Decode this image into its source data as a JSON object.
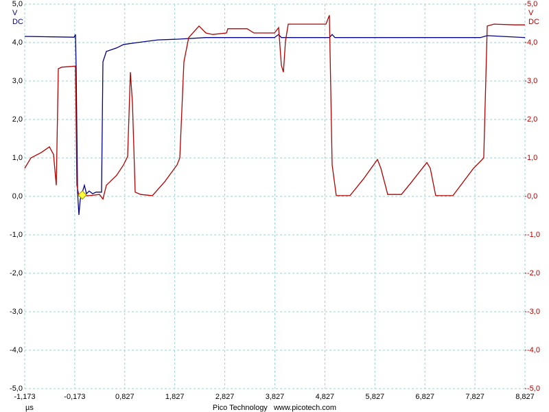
{
  "chart_data": {
    "type": "line",
    "x_label": "µs",
    "y_unit": "V",
    "y_coupling": "DC",
    "footer": "Pico Technology   www.picotech.com",
    "xlim": [
      -1.173,
      8.827
    ],
    "xticks": [
      {
        "value": -1.173,
        "label": "-1,173"
      },
      {
        "value": -0.173,
        "label": "-0,173"
      },
      {
        "value": 0.827,
        "label": "0,827"
      },
      {
        "value": 1.827,
        "label": "1,827"
      },
      {
        "value": 2.827,
        "label": "2,827"
      },
      {
        "value": 3.827,
        "label": "3,827"
      },
      {
        "value": 4.827,
        "label": "4,827"
      },
      {
        "value": 5.827,
        "label": "5,827"
      },
      {
        "value": 6.827,
        "label": "6,827"
      },
      {
        "value": 7.827,
        "label": "7,827"
      },
      {
        "value": 8.827,
        "label": "8,827"
      }
    ],
    "ylim": [
      -5,
      5
    ],
    "yticks": [
      {
        "value": 5,
        "label": "5,0"
      },
      {
        "value": 4,
        "label": "4,0"
      },
      {
        "value": 3,
        "label": "3,0"
      },
      {
        "value": 2,
        "label": "2,0"
      },
      {
        "value": 1,
        "label": "1,0"
      },
      {
        "value": 0,
        "label": "0,0"
      },
      {
        "value": -1,
        "label": "-1,0"
      },
      {
        "value": -2,
        "label": "-2,0"
      },
      {
        "value": -3,
        "label": "-3,0"
      },
      {
        "value": -4,
        "label": "-4,0"
      },
      {
        "value": -5,
        "label": "-5,0"
      }
    ],
    "y2lim": [
      -5,
      5
    ],
    "y2ticks": [
      {
        "value": 5,
        "label": "5,0"
      },
      {
        "value": 4,
        "label": "4,0"
      },
      {
        "value": 3,
        "label": "3,0"
      },
      {
        "value": 2,
        "label": "2,0"
      },
      {
        "value": 1,
        "label": "1,0"
      },
      {
        "value": 0,
        "label": "0,0"
      },
      {
        "value": -1,
        "label": "-1,0"
      },
      {
        "value": -2,
        "label": "-2,0"
      },
      {
        "value": -3,
        "label": "-3,0"
      },
      {
        "value": -4,
        "label": "-4,0"
      },
      {
        "value": -5,
        "label": "-5,0"
      }
    ],
    "grid": true,
    "y_color": "#000080",
    "y2_color": "#b00000",
    "series": [
      {
        "color": "#000080",
        "x": [
          -1.173,
          -0.185,
          -0.158,
          -0.144,
          -0.117,
          -0.089,
          -0.062,
          -0.021,
          0.02,
          0.062,
          0.116,
          0.185,
          0.254,
          0.363,
          0.391,
          0.459,
          0.665,
          0.802,
          1.077,
          1.488,
          1.9,
          2.448,
          2.86,
          3.82,
          3.902,
          3.957,
          4.917,
          4.972,
          5.027,
          7.935,
          8.072,
          8.827
        ],
        "values": [
          4.16,
          4.14,
          4.21,
          3.32,
          0.11,
          -0.48,
          -0.07,
          0.11,
          0.29,
          0.07,
          0.14,
          0.07,
          0.11,
          0.11,
          3.5,
          3.77,
          3.86,
          3.95,
          4.0,
          4.07,
          4.09,
          4.13,
          4.13,
          4.13,
          4.21,
          4.13,
          4.13,
          4.21,
          4.13,
          4.13,
          4.18,
          4.13
        ]
      },
      {
        "color": "#b00000",
        "axis": "y2",
        "x": [
          -1.173,
          -1.05,
          -0.844,
          -0.679,
          -0.597,
          -0.542,
          -0.501,
          -0.432,
          -0.226,
          -0.158,
          -0.13,
          -0.089,
          0.116,
          0.322,
          0.391,
          0.459,
          0.665,
          0.802,
          0.885,
          0.939,
          0.981,
          1.036,
          1.145,
          1.378,
          1.625,
          1.872,
          1.927,
          2.009,
          2.105,
          2.311,
          2.448,
          2.586,
          2.86,
          2.888,
          3.271,
          3.409,
          3.82,
          3.902,
          3.957,
          3.998,
          4.039,
          4.094,
          4.849,
          4.917,
          4.972,
          5.055,
          5.329,
          5.603,
          5.878,
          5.946,
          6.083,
          6.358,
          6.563,
          6.865,
          6.934,
          7.043,
          7.386,
          7.798,
          7.935,
          8.003,
          8.072,
          8.209,
          8.621,
          8.827
        ],
        "values": [
          0.73,
          1.0,
          1.14,
          1.29,
          1.09,
          0.29,
          3.32,
          3.36,
          3.38,
          3.39,
          0.29,
          0.02,
          0.02,
          0.05,
          -0.07,
          0.29,
          0.55,
          0.82,
          1.04,
          3.23,
          2.43,
          0.11,
          0.05,
          0.02,
          0.38,
          0.82,
          1.0,
          3.5,
          4.13,
          4.43,
          4.25,
          4.21,
          4.25,
          4.36,
          4.36,
          4.25,
          4.25,
          4.39,
          3.41,
          3.23,
          4.04,
          4.48,
          4.48,
          4.71,
          0.82,
          0.02,
          0.02,
          0.46,
          0.96,
          0.73,
          0.05,
          0.05,
          0.38,
          0.88,
          0.73,
          0.02,
          0.02,
          0.73,
          0.91,
          1.0,
          4.43,
          4.48,
          4.46,
          4.46
        ]
      }
    ]
  }
}
